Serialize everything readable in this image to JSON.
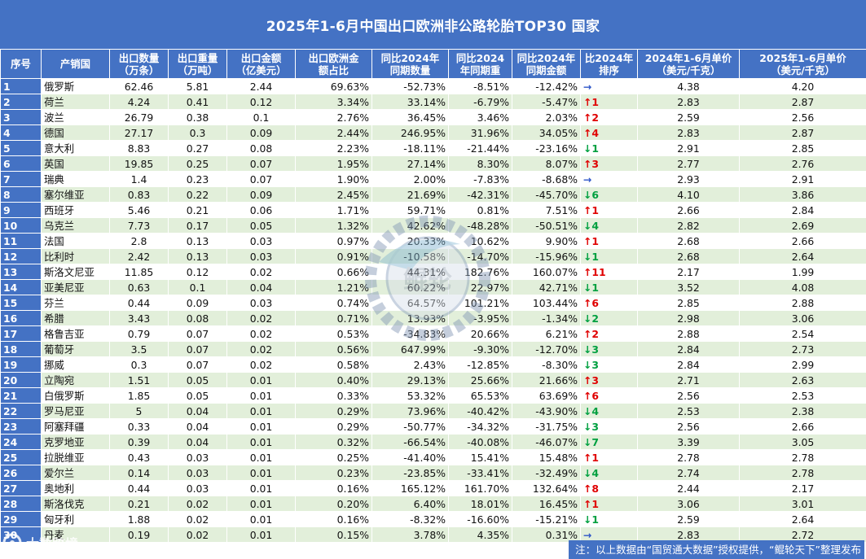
{
  "title": "2025年1-6月中国出口欧洲非公路轮胎TOP30 国家",
  "headers": {
    "seq": "序号",
    "country": "产销国",
    "qty": [
      "出口数量",
      "（万条）"
    ],
    "weight": [
      "出口重量",
      "（万吨）"
    ],
    "amount": [
      "出口金额",
      "（亿美元）"
    ],
    "share": [
      "出口欧洲金",
      "额占比"
    ],
    "yoy_qty": [
      "同比2024年",
      "同期数量"
    ],
    "yoy_weight": [
      "同比2024",
      "年同期重"
    ],
    "yoy_amount": [
      "同比2024年",
      "同期金额"
    ],
    "rank_change": [
      "比2024年",
      "排序"
    ],
    "price_2024": [
      "2024年1-6月单价",
      "（美元/千克）"
    ],
    "price_2025": [
      "2025年1-6月单价",
      "（美元/千克）"
    ]
  },
  "rows": [
    {
      "seq": "1",
      "country": "俄罗斯",
      "qty": "62.46",
      "weight": "5.81",
      "amount": "2.44",
      "share": "69.63%",
      "yoy_qty": "-52.73%",
      "yoy_weight": "-8.51%",
      "yoy_amount": "-12.42%",
      "rank_dir": "flat",
      "rank_arrow": "→",
      "rank_num": "",
      "price_2024": "4.38",
      "price_2025": "4.20"
    },
    {
      "seq": "2",
      "country": "荷兰",
      "qty": "4.24",
      "weight": "0.41",
      "amount": "0.12",
      "share": "3.34%",
      "yoy_qty": "33.14%",
      "yoy_weight": "-6.79%",
      "yoy_amount": "-5.47%",
      "rank_dir": "up",
      "rank_arrow": "↑",
      "rank_num": "1",
      "price_2024": "2.83",
      "price_2025": "2.87"
    },
    {
      "seq": "3",
      "country": "波兰",
      "qty": "26.79",
      "weight": "0.38",
      "amount": "0.1",
      "share": "2.76%",
      "yoy_qty": "36.45%",
      "yoy_weight": "3.46%",
      "yoy_amount": "2.03%",
      "rank_dir": "up",
      "rank_arrow": "↑",
      "rank_num": "2",
      "price_2024": "2.59",
      "price_2025": "2.56"
    },
    {
      "seq": "4",
      "country": "德国",
      "qty": "27.17",
      "weight": "0.3",
      "amount": "0.09",
      "share": "2.44%",
      "yoy_qty": "246.95%",
      "yoy_weight": "31.96%",
      "yoy_amount": "34.05%",
      "rank_dir": "up",
      "rank_arrow": "↑",
      "rank_num": "4",
      "price_2024": "2.83",
      "price_2025": "2.87"
    },
    {
      "seq": "5",
      "country": "意大利",
      "qty": "8.83",
      "weight": "0.27",
      "amount": "0.08",
      "share": "2.23%",
      "yoy_qty": "-18.11%",
      "yoy_weight": "-21.44%",
      "yoy_amount": "-23.16%",
      "rank_dir": "down",
      "rank_arrow": "↓",
      "rank_num": "1",
      "price_2024": "2.91",
      "price_2025": "2.85"
    },
    {
      "seq": "6",
      "country": "英国",
      "qty": "19.85",
      "weight": "0.25",
      "amount": "0.07",
      "share": "1.95%",
      "yoy_qty": "27.14%",
      "yoy_weight": "8.30%",
      "yoy_amount": "8.07%",
      "rank_dir": "up",
      "rank_arrow": "↑",
      "rank_num": "3",
      "price_2024": "2.77",
      "price_2025": "2.76"
    },
    {
      "seq": "7",
      "country": "瑞典",
      "qty": "1.4",
      "weight": "0.23",
      "amount": "0.07",
      "share": "1.90%",
      "yoy_qty": "2.00%",
      "yoy_weight": "-7.83%",
      "yoy_amount": "-8.68%",
      "rank_dir": "flat",
      "rank_arrow": "→",
      "rank_num": "",
      "price_2024": "2.93",
      "price_2025": "2.91"
    },
    {
      "seq": "8",
      "country": "塞尔维亚",
      "qty": "0.83",
      "weight": "0.22",
      "amount": "0.09",
      "share": "2.45%",
      "yoy_qty": "21.69%",
      "yoy_weight": "-42.31%",
      "yoy_amount": "-45.70%",
      "rank_dir": "down",
      "rank_arrow": "↓",
      "rank_num": "6",
      "price_2024": "4.10",
      "price_2025": "3.86"
    },
    {
      "seq": "9",
      "country": "西班牙",
      "qty": "5.46",
      "weight": "0.21",
      "amount": "0.06",
      "share": "1.71%",
      "yoy_qty": "59.71%",
      "yoy_weight": "0.81%",
      "yoy_amount": "7.51%",
      "rank_dir": "up",
      "rank_arrow": "↑",
      "rank_num": "1",
      "price_2024": "2.66",
      "price_2025": "2.84"
    },
    {
      "seq": "10",
      "country": "乌克兰",
      "qty": "7.73",
      "weight": "0.17",
      "amount": "0.05",
      "share": "1.32%",
      "yoy_qty": "42.62%",
      "yoy_weight": "-48.28%",
      "yoy_amount": "-50.51%",
      "rank_dir": "down",
      "rank_arrow": "↓",
      "rank_num": "4",
      "price_2024": "2.82",
      "price_2025": "2.69"
    },
    {
      "seq": "11",
      "country": "法国",
      "qty": "2.8",
      "weight": "0.13",
      "amount": "0.03",
      "share": "0.97%",
      "yoy_qty": "20.33%",
      "yoy_weight": "10.62%",
      "yoy_amount": "9.90%",
      "rank_dir": "up",
      "rank_arrow": "↑",
      "rank_num": "1",
      "price_2024": "2.68",
      "price_2025": "2.66"
    },
    {
      "seq": "12",
      "country": "比利时",
      "qty": "2.42",
      "weight": "0.13",
      "amount": "0.03",
      "share": "0.91%",
      "yoy_qty": "-10.58%",
      "yoy_weight": "-14.70%",
      "yoy_amount": "-15.96%",
      "rank_dir": "down",
      "rank_arrow": "↓",
      "rank_num": "1",
      "price_2024": "2.68",
      "price_2025": "2.64"
    },
    {
      "seq": "13",
      "country": "斯洛文尼亚",
      "qty": "11.85",
      "weight": "0.12",
      "amount": "0.02",
      "share": "0.66%",
      "yoy_qty": "44.31%",
      "yoy_weight": "182.76%",
      "yoy_amount": "160.07%",
      "rank_dir": "up",
      "rank_arrow": "↑",
      "rank_num": "11",
      "price_2024": "2.17",
      "price_2025": "1.99"
    },
    {
      "seq": "14",
      "country": "亚美尼亚",
      "qty": "0.63",
      "weight": "0.1",
      "amount": "0.04",
      "share": "1.21%",
      "yoy_qty": "60.22%",
      "yoy_weight": "22.97%",
      "yoy_amount": "42.71%",
      "rank_dir": "down",
      "rank_arrow": "↓",
      "rank_num": "1",
      "price_2024": "3.52",
      "price_2025": "4.08"
    },
    {
      "seq": "15",
      "country": "芬兰",
      "qty": "0.44",
      "weight": "0.09",
      "amount": "0.03",
      "share": "0.74%",
      "yoy_qty": "64.57%",
      "yoy_weight": "101.21%",
      "yoy_amount": "103.44%",
      "rank_dir": "up",
      "rank_arrow": "↑",
      "rank_num": "6",
      "price_2024": "2.85",
      "price_2025": "2.88"
    },
    {
      "seq": "16",
      "country": "希腊",
      "qty": "3.43",
      "weight": "0.08",
      "amount": "0.02",
      "share": "0.71%",
      "yoy_qty": "13.93%",
      "yoy_weight": "-3.95%",
      "yoy_amount": "-1.34%",
      "rank_dir": "down",
      "rank_arrow": "↓",
      "rank_num": "2",
      "price_2024": "2.98",
      "price_2025": "3.06"
    },
    {
      "seq": "17",
      "country": "格鲁吉亚",
      "qty": "0.79",
      "weight": "0.07",
      "amount": "0.02",
      "share": "0.53%",
      "yoy_qty": "-34.83%",
      "yoy_weight": "20.66%",
      "yoy_amount": "6.21%",
      "rank_dir": "up",
      "rank_arrow": "↑",
      "rank_num": "2",
      "price_2024": "2.88",
      "price_2025": "2.54"
    },
    {
      "seq": "18",
      "country": "葡萄牙",
      "qty": "3.5",
      "weight": "0.07",
      "amount": "0.02",
      "share": "0.56%",
      "yoy_qty": "647.99%",
      "yoy_weight": "-9.30%",
      "yoy_amount": "-12.70%",
      "rank_dir": "down",
      "rank_arrow": "↓",
      "rank_num": "3",
      "price_2024": "2.84",
      "price_2025": "2.73"
    },
    {
      "seq": "19",
      "country": "挪威",
      "qty": "0.3",
      "weight": "0.07",
      "amount": "0.02",
      "share": "0.58%",
      "yoy_qty": "2.43%",
      "yoy_weight": "-12.85%",
      "yoy_amount": "-8.30%",
      "rank_dir": "down",
      "rank_arrow": "↓",
      "rank_num": "3",
      "price_2024": "2.84",
      "price_2025": "2.99"
    },
    {
      "seq": "20",
      "country": "立陶宛",
      "qty": "1.51",
      "weight": "0.05",
      "amount": "0.01",
      "share": "0.40%",
      "yoy_qty": "29.13%",
      "yoy_weight": "25.66%",
      "yoy_amount": "21.66%",
      "rank_dir": "up",
      "rank_arrow": "↑",
      "rank_num": "3",
      "price_2024": "2.71",
      "price_2025": "2.63"
    },
    {
      "seq": "21",
      "country": "白俄罗斯",
      "qty": "1.85",
      "weight": "0.05",
      "amount": "0.01",
      "share": "0.33%",
      "yoy_qty": "53.32%",
      "yoy_weight": "65.53%",
      "yoy_amount": "63.69%",
      "rank_dir": "up",
      "rank_arrow": "↑",
      "rank_num": "6",
      "price_2024": "2.56",
      "price_2025": "2.53"
    },
    {
      "seq": "22",
      "country": "罗马尼亚",
      "qty": "5",
      "weight": "0.04",
      "amount": "0.01",
      "share": "0.29%",
      "yoy_qty": "73.96%",
      "yoy_weight": "-40.42%",
      "yoy_amount": "-43.90%",
      "rank_dir": "down",
      "rank_arrow": "↓",
      "rank_num": "4",
      "price_2024": "2.53",
      "price_2025": "2.38"
    },
    {
      "seq": "23",
      "country": "阿塞拜疆",
      "qty": "0.33",
      "weight": "0.04",
      "amount": "0.01",
      "share": "0.29%",
      "yoy_qty": "-50.77%",
      "yoy_weight": "-34.32%",
      "yoy_amount": "-31.75%",
      "rank_dir": "down",
      "rank_arrow": "↓",
      "rank_num": "3",
      "price_2024": "2.56",
      "price_2025": "2.66"
    },
    {
      "seq": "24",
      "country": "克罗地亚",
      "qty": "0.39",
      "weight": "0.04",
      "amount": "0.01",
      "share": "0.32%",
      "yoy_qty": "-66.54%",
      "yoy_weight": "-40.08%",
      "yoy_amount": "-46.07%",
      "rank_dir": "down",
      "rank_arrow": "↓",
      "rank_num": "7",
      "price_2024": "3.39",
      "price_2025": "3.05"
    },
    {
      "seq": "25",
      "country": "拉脱维亚",
      "qty": "0.43",
      "weight": "0.03",
      "amount": "0.01",
      "share": "0.25%",
      "yoy_qty": "-41.40%",
      "yoy_weight": "15.41%",
      "yoy_amount": "15.48%",
      "rank_dir": "up",
      "rank_arrow": "↑",
      "rank_num": "1",
      "price_2024": "2.78",
      "price_2025": "2.78"
    },
    {
      "seq": "26",
      "country": "爱尔兰",
      "qty": "0.14",
      "weight": "0.03",
      "amount": "0.01",
      "share": "0.23%",
      "yoy_qty": "-23.85%",
      "yoy_weight": "-33.41%",
      "yoy_amount": "-32.49%",
      "rank_dir": "down",
      "rank_arrow": "↓",
      "rank_num": "4",
      "price_2024": "2.74",
      "price_2025": "2.78"
    },
    {
      "seq": "27",
      "country": "奥地利",
      "qty": "0.44",
      "weight": "0.03",
      "amount": "0.01",
      "share": "0.16%",
      "yoy_qty": "165.12%",
      "yoy_weight": "161.70%",
      "yoy_amount": "132.64%",
      "rank_dir": "up",
      "rank_arrow": "↑",
      "rank_num": "8",
      "price_2024": "2.44",
      "price_2025": "2.17"
    },
    {
      "seq": "28",
      "country": "斯洛伐克",
      "qty": "0.21",
      "weight": "0.02",
      "amount": "0.01",
      "share": "0.20%",
      "yoy_qty": "6.40%",
      "yoy_weight": "18.01%",
      "yoy_amount": "16.45%",
      "rank_dir": "up",
      "rank_arrow": "↑",
      "rank_num": "1",
      "price_2024": "3.06",
      "price_2025": "3.01"
    },
    {
      "seq": "29",
      "country": "匈牙利",
      "qty": "1.88",
      "weight": "0.02",
      "amount": "0.01",
      "share": "0.16%",
      "yoy_qty": "-8.32%",
      "yoy_weight": "-16.60%",
      "yoy_amount": "-15.21%",
      "rank_dir": "down",
      "rank_arrow": "↓",
      "rank_num": "1",
      "price_2024": "2.59",
      "price_2025": "2.64"
    },
    {
      "seq": "30",
      "country": "丹麦",
      "qty": "0.19",
      "weight": "0.02",
      "amount": "0.01",
      "share": "0.15%",
      "yoy_qty": "3.78%",
      "yoy_weight": "4.35%",
      "yoy_amount": "0.31%",
      "rank_dir": "flat",
      "rank_arrow": "→",
      "rank_num": "",
      "price_2024": "2.83",
      "price_2025": "2.72"
    }
  ],
  "footer_note": "注：以上数据由“国贸通大数据”授权提供，“鲲轮天下”整理发布",
  "watermark_text": "鲲轮",
  "brand_text": "大数跨境",
  "colors": {
    "header_blue": "#4472c4",
    "row_green": "#e2efda",
    "up_red": "#e00000",
    "down_green": "#00a040",
    "flat_blue": "#2d55c8"
  }
}
